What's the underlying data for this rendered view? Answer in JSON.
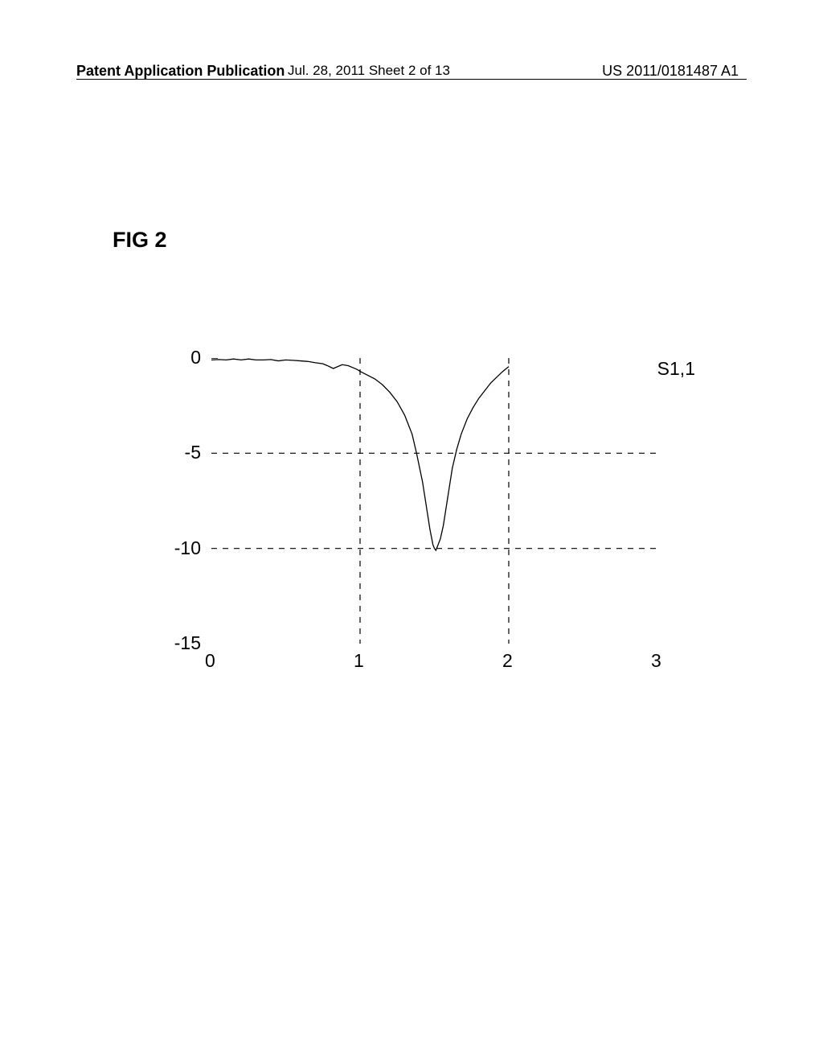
{
  "header": {
    "left": "Patent Application Publication",
    "middle": "Jul. 28, 2011  Sheet 2 of 13",
    "right": "US 2011/0181487 A1"
  },
  "figure": {
    "label": "FIG 2"
  },
  "chart": {
    "type": "line",
    "xlim": [
      0,
      3
    ],
    "ylim": [
      -15,
      0
    ],
    "xtick_values": [
      0,
      1,
      2,
      3
    ],
    "ytick_values": [
      0,
      -5,
      -10,
      -15
    ],
    "xtick_labels": [
      "0",
      "1",
      "2",
      "3"
    ],
    "ytick_labels": [
      "0",
      "-5",
      "-10",
      "-15"
    ],
    "series_label": "S1,1",
    "line_color": "#000000",
    "grid_color": "#000000",
    "background_color": "#ffffff",
    "data_points": [
      [
        0.0,
        -0.1
      ],
      [
        0.05,
        -0.08
      ],
      [
        0.1,
        -0.1
      ],
      [
        0.15,
        -0.05
      ],
      [
        0.2,
        -0.1
      ],
      [
        0.25,
        -0.05
      ],
      [
        0.3,
        -0.1
      ],
      [
        0.35,
        -0.1
      ],
      [
        0.4,
        -0.08
      ],
      [
        0.45,
        -0.15
      ],
      [
        0.5,
        -0.1
      ],
      [
        0.55,
        -0.12
      ],
      [
        0.6,
        -0.15
      ],
      [
        0.65,
        -0.18
      ],
      [
        0.7,
        -0.25
      ],
      [
        0.75,
        -0.3
      ],
      [
        0.78,
        -0.4
      ],
      [
        0.82,
        -0.55
      ],
      [
        0.85,
        -0.45
      ],
      [
        0.88,
        -0.35
      ],
      [
        0.92,
        -0.4
      ],
      [
        0.95,
        -0.5
      ],
      [
        0.98,
        -0.6
      ],
      [
        1.0,
        -0.7
      ],
      [
        1.05,
        -0.9
      ],
      [
        1.1,
        -1.1
      ],
      [
        1.15,
        -1.4
      ],
      [
        1.2,
        -1.8
      ],
      [
        1.25,
        -2.3
      ],
      [
        1.3,
        -3.0
      ],
      [
        1.35,
        -4.0
      ],
      [
        1.38,
        -5.0
      ],
      [
        1.42,
        -6.5
      ],
      [
        1.45,
        -8.0
      ],
      [
        1.47,
        -9.0
      ],
      [
        1.49,
        -9.8
      ],
      [
        1.5,
        -10.0
      ],
      [
        1.51,
        -10.1
      ],
      [
        1.52,
        -9.9
      ],
      [
        1.54,
        -9.5
      ],
      [
        1.56,
        -8.8
      ],
      [
        1.58,
        -7.8
      ],
      [
        1.6,
        -6.8
      ],
      [
        1.62,
        -5.8
      ],
      [
        1.65,
        -4.8
      ],
      [
        1.68,
        -4.0
      ],
      [
        1.72,
        -3.2
      ],
      [
        1.76,
        -2.6
      ],
      [
        1.8,
        -2.1
      ],
      [
        1.84,
        -1.7
      ],
      [
        1.88,
        -1.3
      ],
      [
        1.92,
        -1.0
      ],
      [
        1.96,
        -0.7
      ],
      [
        2.0,
        -0.45
      ]
    ]
  }
}
